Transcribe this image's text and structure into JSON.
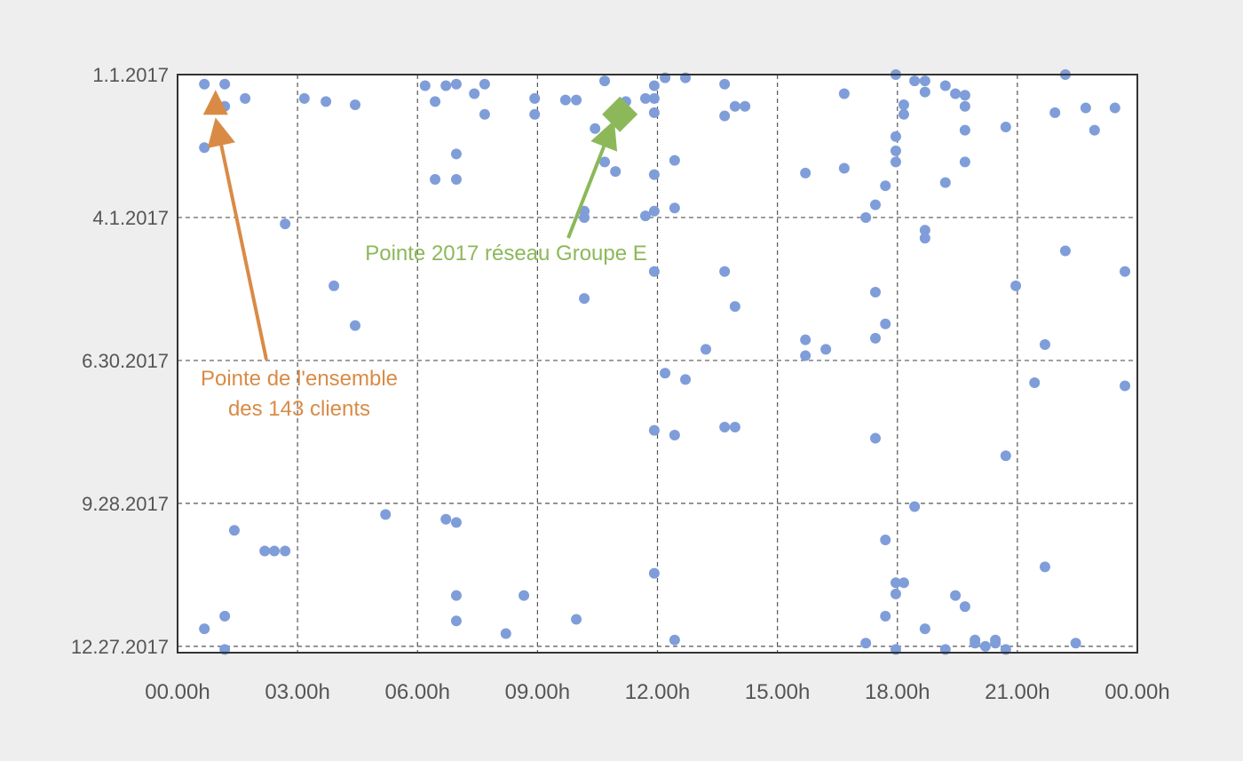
{
  "chart_data": {
    "type": "scatter",
    "title": "",
    "xlabel": "",
    "ylabel": "",
    "x_unit": "hour of day",
    "xlim": [
      0,
      24
    ],
    "ylim": [
      "2017-01-01",
      "2017-12-31"
    ],
    "y_inverted": true,
    "grid": true,
    "x_ticks": [
      {
        "value": 0,
        "label": "00.00h"
      },
      {
        "value": 3,
        "label": "03.00h"
      },
      {
        "value": 6,
        "label": "06.00h"
      },
      {
        "value": 9,
        "label": "09.00h"
      },
      {
        "value": 12,
        "label": "12.00h"
      },
      {
        "value": 15,
        "label": "15.00h"
      },
      {
        "value": 18,
        "label": "18.00h"
      },
      {
        "value": 21,
        "label": "21.00h"
      },
      {
        "value": 24,
        "label": "00.00h"
      }
    ],
    "y_ticks": [
      {
        "value": "2017-01-01",
        "label": "1.1.2017"
      },
      {
        "value": "2017-04-01",
        "label": "4.1.2017"
      },
      {
        "value": "2017-06-30",
        "label": "6.30.2017"
      },
      {
        "value": "2017-09-28",
        "label": "9.28.2017"
      },
      {
        "value": "2017-12-27",
        "label": "12.27.2017"
      }
    ],
    "colors": {
      "points": "#7f9dd9",
      "customers_peak": "#d98b46",
      "network_peak": "#8cb85a",
      "grid": "#555555",
      "frame": "#333333"
    },
    "series": [
      {
        "marker": "circle",
        "points": [
          [
            0.67,
            "2017-01-07"
          ],
          [
            1.18,
            "2017-01-07"
          ],
          [
            1.18,
            "2017-01-21"
          ],
          [
            1.69,
            "2017-01-16"
          ],
          [
            0.67,
            "2017-02-16"
          ],
          [
            2.69,
            "2017-04-05"
          ],
          [
            3.17,
            "2017-01-16"
          ],
          [
            3.71,
            "2017-01-18"
          ],
          [
            4.44,
            "2017-01-20"
          ],
          [
            3.91,
            "2017-05-14"
          ],
          [
            4.44,
            "2017-06-08"
          ],
          [
            6.19,
            "2017-01-08"
          ],
          [
            6.44,
            "2017-01-18"
          ],
          [
            6.71,
            "2017-01-08"
          ],
          [
            6.97,
            "2017-01-07"
          ],
          [
            7.42,
            "2017-01-13"
          ],
          [
            7.68,
            "2017-01-07"
          ],
          [
            7.68,
            "2017-01-26"
          ],
          [
            6.97,
            "2017-02-20"
          ],
          [
            6.44,
            "2017-03-08"
          ],
          [
            6.97,
            "2017-03-08"
          ],
          [
            8.93,
            "2017-01-16"
          ],
          [
            8.93,
            "2017-01-26"
          ],
          [
            9.7,
            "2017-01-17"
          ],
          [
            9.97,
            "2017-01-17"
          ],
          [
            10.44,
            "2017-02-04"
          ],
          [
            10.68,
            "2017-01-05"
          ],
          [
            10.68,
            "2017-02-25"
          ],
          [
            10.95,
            "2017-03-03"
          ],
          [
            11.21,
            "2017-01-18"
          ],
          [
            11.7,
            "2017-01-16"
          ],
          [
            11.92,
            "2017-01-16"
          ],
          [
            11.92,
            "2017-01-08"
          ],
          [
            11.92,
            "2017-01-25"
          ],
          [
            11.92,
            "2017-03-05"
          ],
          [
            11.92,
            "2017-03-28"
          ],
          [
            11.7,
            "2017-03-31"
          ],
          [
            10.17,
            "2017-03-28"
          ],
          [
            10.17,
            "2017-04-01"
          ],
          [
            10.17,
            "2017-05-22"
          ],
          [
            11.92,
            "2017-05-05"
          ],
          [
            12.19,
            "2017-01-03"
          ],
          [
            12.7,
            "2017-01-03"
          ],
          [
            12.43,
            "2017-02-24"
          ],
          [
            12.43,
            "2017-03-26"
          ],
          [
            13.68,
            "2017-01-07"
          ],
          [
            13.68,
            "2017-01-27"
          ],
          [
            13.94,
            "2017-01-21"
          ],
          [
            14.19,
            "2017-01-21"
          ],
          [
            13.68,
            "2017-05-05"
          ],
          [
            13.94,
            "2017-05-27"
          ],
          [
            13.21,
            "2017-06-23"
          ],
          [
            12.19,
            "2017-07-08"
          ],
          [
            12.7,
            "2017-07-12"
          ],
          [
            11.92,
            "2017-08-13"
          ],
          [
            12.43,
            "2017-08-16"
          ],
          [
            13.68,
            "2017-08-11"
          ],
          [
            13.94,
            "2017-08-11"
          ],
          [
            15.7,
            "2017-03-04"
          ],
          [
            16.67,
            "2017-01-13"
          ],
          [
            16.67,
            "2017-03-01"
          ],
          [
            17.21,
            "2017-04-01"
          ],
          [
            17.45,
            "2017-03-24"
          ],
          [
            17.7,
            "2017-03-12"
          ],
          [
            17.96,
            "2017-01-01"
          ],
          [
            17.96,
            "2017-02-09"
          ],
          [
            17.96,
            "2017-02-18"
          ],
          [
            17.96,
            "2017-02-25"
          ],
          [
            18.16,
            "2017-01-20"
          ],
          [
            18.16,
            "2017-01-26"
          ],
          [
            18.43,
            "2017-01-05"
          ],
          [
            18.69,
            "2017-01-05"
          ],
          [
            18.69,
            "2017-01-12"
          ],
          [
            18.69,
            "2017-04-09"
          ],
          [
            18.69,
            "2017-04-14"
          ],
          [
            19.2,
            "2017-01-08"
          ],
          [
            19.45,
            "2017-01-13"
          ],
          [
            19.69,
            "2017-01-14"
          ],
          [
            19.69,
            "2017-01-21"
          ],
          [
            19.69,
            "2017-02-05"
          ],
          [
            19.69,
            "2017-02-25"
          ],
          [
            19.2,
            "2017-03-10"
          ],
          [
            20.71,
            "2017-02-03"
          ],
          [
            21.94,
            "2017-01-25"
          ],
          [
            22.2,
            "2017-01-01"
          ],
          [
            22.71,
            "2017-01-22"
          ],
          [
            22.93,
            "2017-02-05"
          ],
          [
            23.44,
            "2017-01-22"
          ],
          [
            22.2,
            "2017-04-22"
          ],
          [
            23.69,
            "2017-05-05"
          ],
          [
            20.96,
            "2017-05-14"
          ],
          [
            17.45,
            "2017-05-18"
          ],
          [
            17.7,
            "2017-06-07"
          ],
          [
            17.45,
            "2017-06-16"
          ],
          [
            15.7,
            "2017-06-17"
          ],
          [
            15.7,
            "2017-06-27"
          ],
          [
            16.21,
            "2017-06-23"
          ],
          [
            21.69,
            "2017-06-20"
          ],
          [
            21.43,
            "2017-07-14"
          ],
          [
            23.69,
            "2017-07-16"
          ],
          [
            17.45,
            "2017-08-18"
          ],
          [
            20.71,
            "2017-08-29"
          ],
          [
            5.2,
            "2017-10-05"
          ],
          [
            6.71,
            "2017-10-08"
          ],
          [
            6.97,
            "2017-10-10"
          ],
          [
            1.42,
            "2017-10-15"
          ],
          [
            2.18,
            "2017-10-28"
          ],
          [
            2.42,
            "2017-10-28"
          ],
          [
            2.69,
            "2017-10-28"
          ],
          [
            6.97,
            "2017-11-25"
          ],
          [
            8.66,
            "2017-11-25"
          ],
          [
            6.97,
            "2017-12-11"
          ],
          [
            9.97,
            "2017-12-10"
          ],
          [
            8.21,
            "2017-12-19"
          ],
          [
            0.67,
            "2017-12-16"
          ],
          [
            1.18,
            "2017-12-08"
          ],
          [
            1.18,
            "2017-12-29"
          ],
          [
            11.92,
            "2017-11-11"
          ],
          [
            12.43,
            "2017-12-23"
          ],
          [
            18.43,
            "2017-09-30"
          ],
          [
            17.7,
            "2017-10-21"
          ],
          [
            21.69,
            "2017-11-07"
          ],
          [
            17.96,
            "2017-11-17"
          ],
          [
            18.16,
            "2017-11-17"
          ],
          [
            17.96,
            "2017-11-24"
          ],
          [
            19.45,
            "2017-11-25"
          ],
          [
            19.69,
            "2017-12-02"
          ],
          [
            17.7,
            "2017-12-08"
          ],
          [
            18.69,
            "2017-12-16"
          ],
          [
            17.21,
            "2017-12-25"
          ],
          [
            17.96,
            "2017-12-29"
          ],
          [
            19.2,
            "2017-12-29"
          ],
          [
            19.94,
            "2017-12-23"
          ],
          [
            19.94,
            "2017-12-25"
          ],
          [
            20.2,
            "2017-12-27"
          ],
          [
            20.45,
            "2017-12-23"
          ],
          [
            20.45,
            "2017-12-25"
          ],
          [
            20.71,
            "2017-12-29"
          ],
          [
            22.46,
            "2017-12-25"
          ]
        ]
      },
      {
        "marker": "triangle",
        "points": [
          [
            0.95,
            "2017-01-19"
          ]
        ]
      },
      {
        "marker": "diamond",
        "points": [
          [
            11.06,
            "2017-01-26"
          ]
        ]
      }
    ],
    "annotations": [
      {
        "id": "customers_peak",
        "lines": [
          "Pointe de l'ensemble",
          "des 143 clients"
        ]
      },
      {
        "id": "network_peak",
        "lines": [
          "Pointe 2017 réseau Groupe E"
        ]
      }
    ]
  }
}
